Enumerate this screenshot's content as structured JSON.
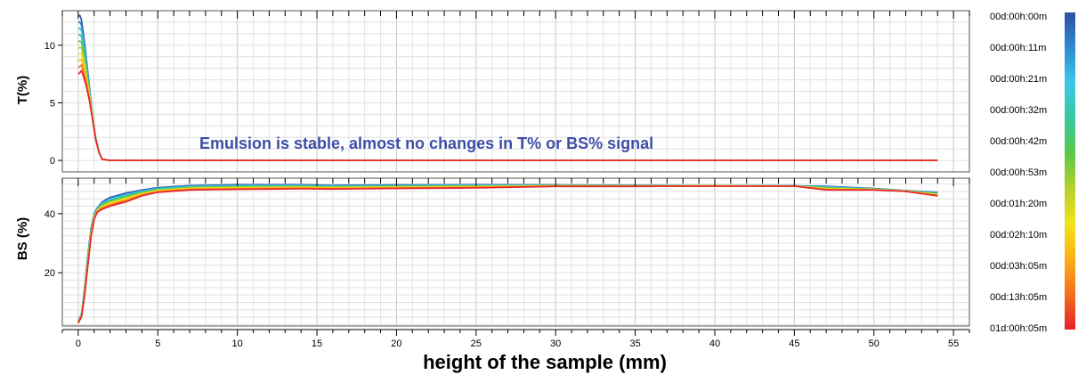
{
  "chart_data": {
    "type": "line",
    "annotation": "Emulsion is stable, almost no changes in T% or BS% signal",
    "annotation_color": "#3c4ea6",
    "xlabel": "height of the sample (mm)",
    "xlim": [
      -1,
      56
    ],
    "x_ticks": [
      0,
      5,
      10,
      15,
      20,
      25,
      30,
      35,
      40,
      45,
      50,
      55
    ],
    "grid": true,
    "legend": {
      "placement": "right",
      "colorbar_colors": [
        "#2e4fa3",
        "#2e8bd0",
        "#3dc7e8",
        "#37c7a0",
        "#5cc84a",
        "#b5d12b",
        "#f3e21a",
        "#fbb017",
        "#f36f1c",
        "#e8212d"
      ],
      "labels": [
        "00d:00h:00m",
        "00d:00h:11m",
        "00d:00h:21m",
        "00d:00h:32m",
        "00d:00h:42m",
        "00d:00h:53m",
        "00d:01h:20m",
        "00d:02h:10m",
        "00d:03h:05m",
        "00d:13h:05m",
        "01d:00h:05m"
      ]
    },
    "series_colors": [
      "#2e4fa3",
      "#2e8bd0",
      "#3dc7e8",
      "#37c7a0",
      "#5cc84a",
      "#b5d12b",
      "#f3e21a",
      "#fbb017",
      "#f36f1c",
      "#e8212d"
    ],
    "panels": [
      {
        "ylabel": "T(%)",
        "ylim": [
          -1,
          13
        ],
        "y_ticks": [
          0,
          5,
          10
        ],
        "x": [
          0,
          0.1,
          0.2,
          0.35,
          0.5,
          0.7,
          0.9,
          1.1,
          1.3,
          1.5,
          2,
          5,
          10,
          20,
          30,
          40,
          50,
          54
        ],
        "first": [
          12.5,
          12.6,
          12.2,
          10.8,
          9.0,
          6.5,
          4.0,
          2.0,
          0.8,
          0.1,
          0,
          0,
          0,
          0,
          0,
          0,
          0,
          0
        ],
        "last": [
          7.5,
          7.6,
          7.8,
          7.2,
          6.5,
          5.2,
          3.5,
          1.8,
          0.7,
          0.1,
          0,
          0,
          0,
          0,
          0,
          0,
          0,
          0
        ]
      },
      {
        "ylabel": "BS (%)",
        "ylim": [
          2,
          52
        ],
        "y_ticks": [
          20,
          40
        ],
        "x": [
          0,
          0.2,
          0.4,
          0.6,
          0.8,
          1.0,
          1.2,
          1.5,
          2,
          3,
          4,
          5,
          7,
          10,
          12,
          14,
          16,
          20,
          25,
          30,
          35,
          40,
          45,
          47,
          50,
          52,
          54
        ],
        "first": [
          4,
          6,
          15,
          26,
          35,
          40,
          42,
          44,
          45.5,
          47,
          48,
          48.8,
          49.5,
          49.8,
          49.8,
          49.8,
          49.6,
          49.7,
          49.8,
          49.7,
          49.6,
          49.5,
          49.4,
          49.3,
          48.5,
          47.8,
          47.2
        ],
        "last": [
          3,
          5,
          12,
          22,
          32,
          38,
          40.5,
          41.5,
          42.5,
          44,
          46,
          47.2,
          48,
          48.2,
          48.3,
          48.4,
          48.3,
          48.5,
          48.7,
          49.2,
          49.2,
          49.3,
          49.3,
          48.0,
          48.0,
          47.5,
          46.0
        ]
      }
    ]
  }
}
